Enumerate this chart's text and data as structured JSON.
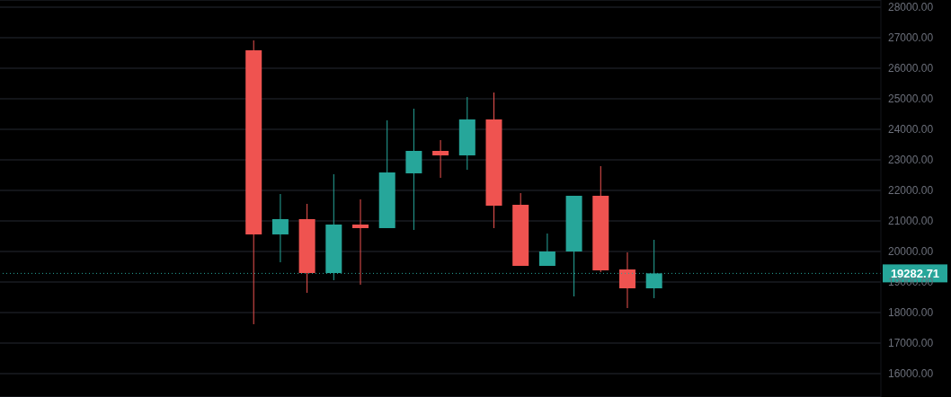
{
  "chart_data": {
    "type": "candlestick",
    "categories": [
      null,
      null,
      null,
      null,
      null,
      null,
      null,
      null,
      null,
      null,
      null,
      null,
      null,
      null,
      null,
      null,
      null,
      null,
      null,
      null,
      null,
      null,
      null,
      null,
      null,
      null,
      null,
      null,
      null,
      null,
      null,
      null,
      null
    ],
    "ohlc": [
      null,
      null,
      null,
      null,
      null,
      null,
      null,
      null,
      null,
      [
        26588,
        26912,
        17618,
        20559
      ],
      [
        20559,
        21882,
        19647,
        21059
      ],
      [
        21059,
        21559,
        18647,
        19294
      ],
      [
        19294,
        22529,
        19059,
        20882
      ],
      [
        20882,
        21706,
        18912,
        20765
      ],
      [
        20765,
        24294,
        20765,
        22588
      ],
      [
        22559,
        24676,
        20706,
        23294
      ],
      [
        23294,
        23647,
        22412,
        23147
      ],
      [
        23147,
        25059,
        22676,
        24324
      ],
      [
        24324,
        25206,
        20765,
        21500
      ],
      [
        21529,
        21912,
        19529,
        19529
      ],
      [
        19529,
        20588,
        19529,
        20000
      ],
      [
        20000,
        21824,
        18529,
        21824
      ],
      [
        21824,
        22794,
        19324,
        19382
      ],
      [
        19412,
        19971,
        18147,
        18794
      ],
      [
        18794,
        20382,
        18471,
        19282.71
      ],
      null,
      null,
      null,
      null,
      null,
      null,
      null,
      null
    ],
    "colors": [
      null,
      null,
      null,
      null,
      null,
      null,
      null,
      null,
      null,
      "#ef5350",
      "#26a69a",
      "#ef5350",
      "#26a69a",
      "#ef5350",
      "#26a69a",
      "#26a69a",
      "#ef5350",
      "#26a69a",
      "#ef5350",
      "#ef5350",
      "#26a69a",
      "#26a69a",
      "#ef5350",
      "#ef5350",
      "#26a69a",
      null,
      null,
      null,
      null,
      null,
      null,
      null,
      null
    ],
    "ylim": [
      15235,
      28235
    ],
    "yticks": [
      {
        "value": 16000,
        "label": "16000.00"
      },
      {
        "value": 17000,
        "label": "17000.00"
      },
      {
        "value": 18000,
        "label": "18000.00"
      },
      {
        "value": 19000,
        "label": "19000.00"
      },
      {
        "value": 20000,
        "label": "20000.00"
      },
      {
        "value": 21000,
        "label": "21000.00"
      },
      {
        "value": 22000,
        "label": "22000.00"
      },
      {
        "value": 23000,
        "label": "23000.00"
      },
      {
        "value": 24000,
        "label": "24000.00"
      },
      {
        "value": 25000,
        "label": "25000.00"
      },
      {
        "value": 26000,
        "label": "26000.00"
      },
      {
        "value": 27000,
        "label": "27000.00"
      },
      {
        "value": 28000,
        "label": "28000.00"
      }
    ],
    "ref_lines": [
      {
        "axis": "y",
        "value": 19282.71,
        "label": "19282.71",
        "color": "#26a69a",
        "line_style": "dotted"
      }
    ],
    "grid": "y",
    "tick_labels": "y"
  }
}
